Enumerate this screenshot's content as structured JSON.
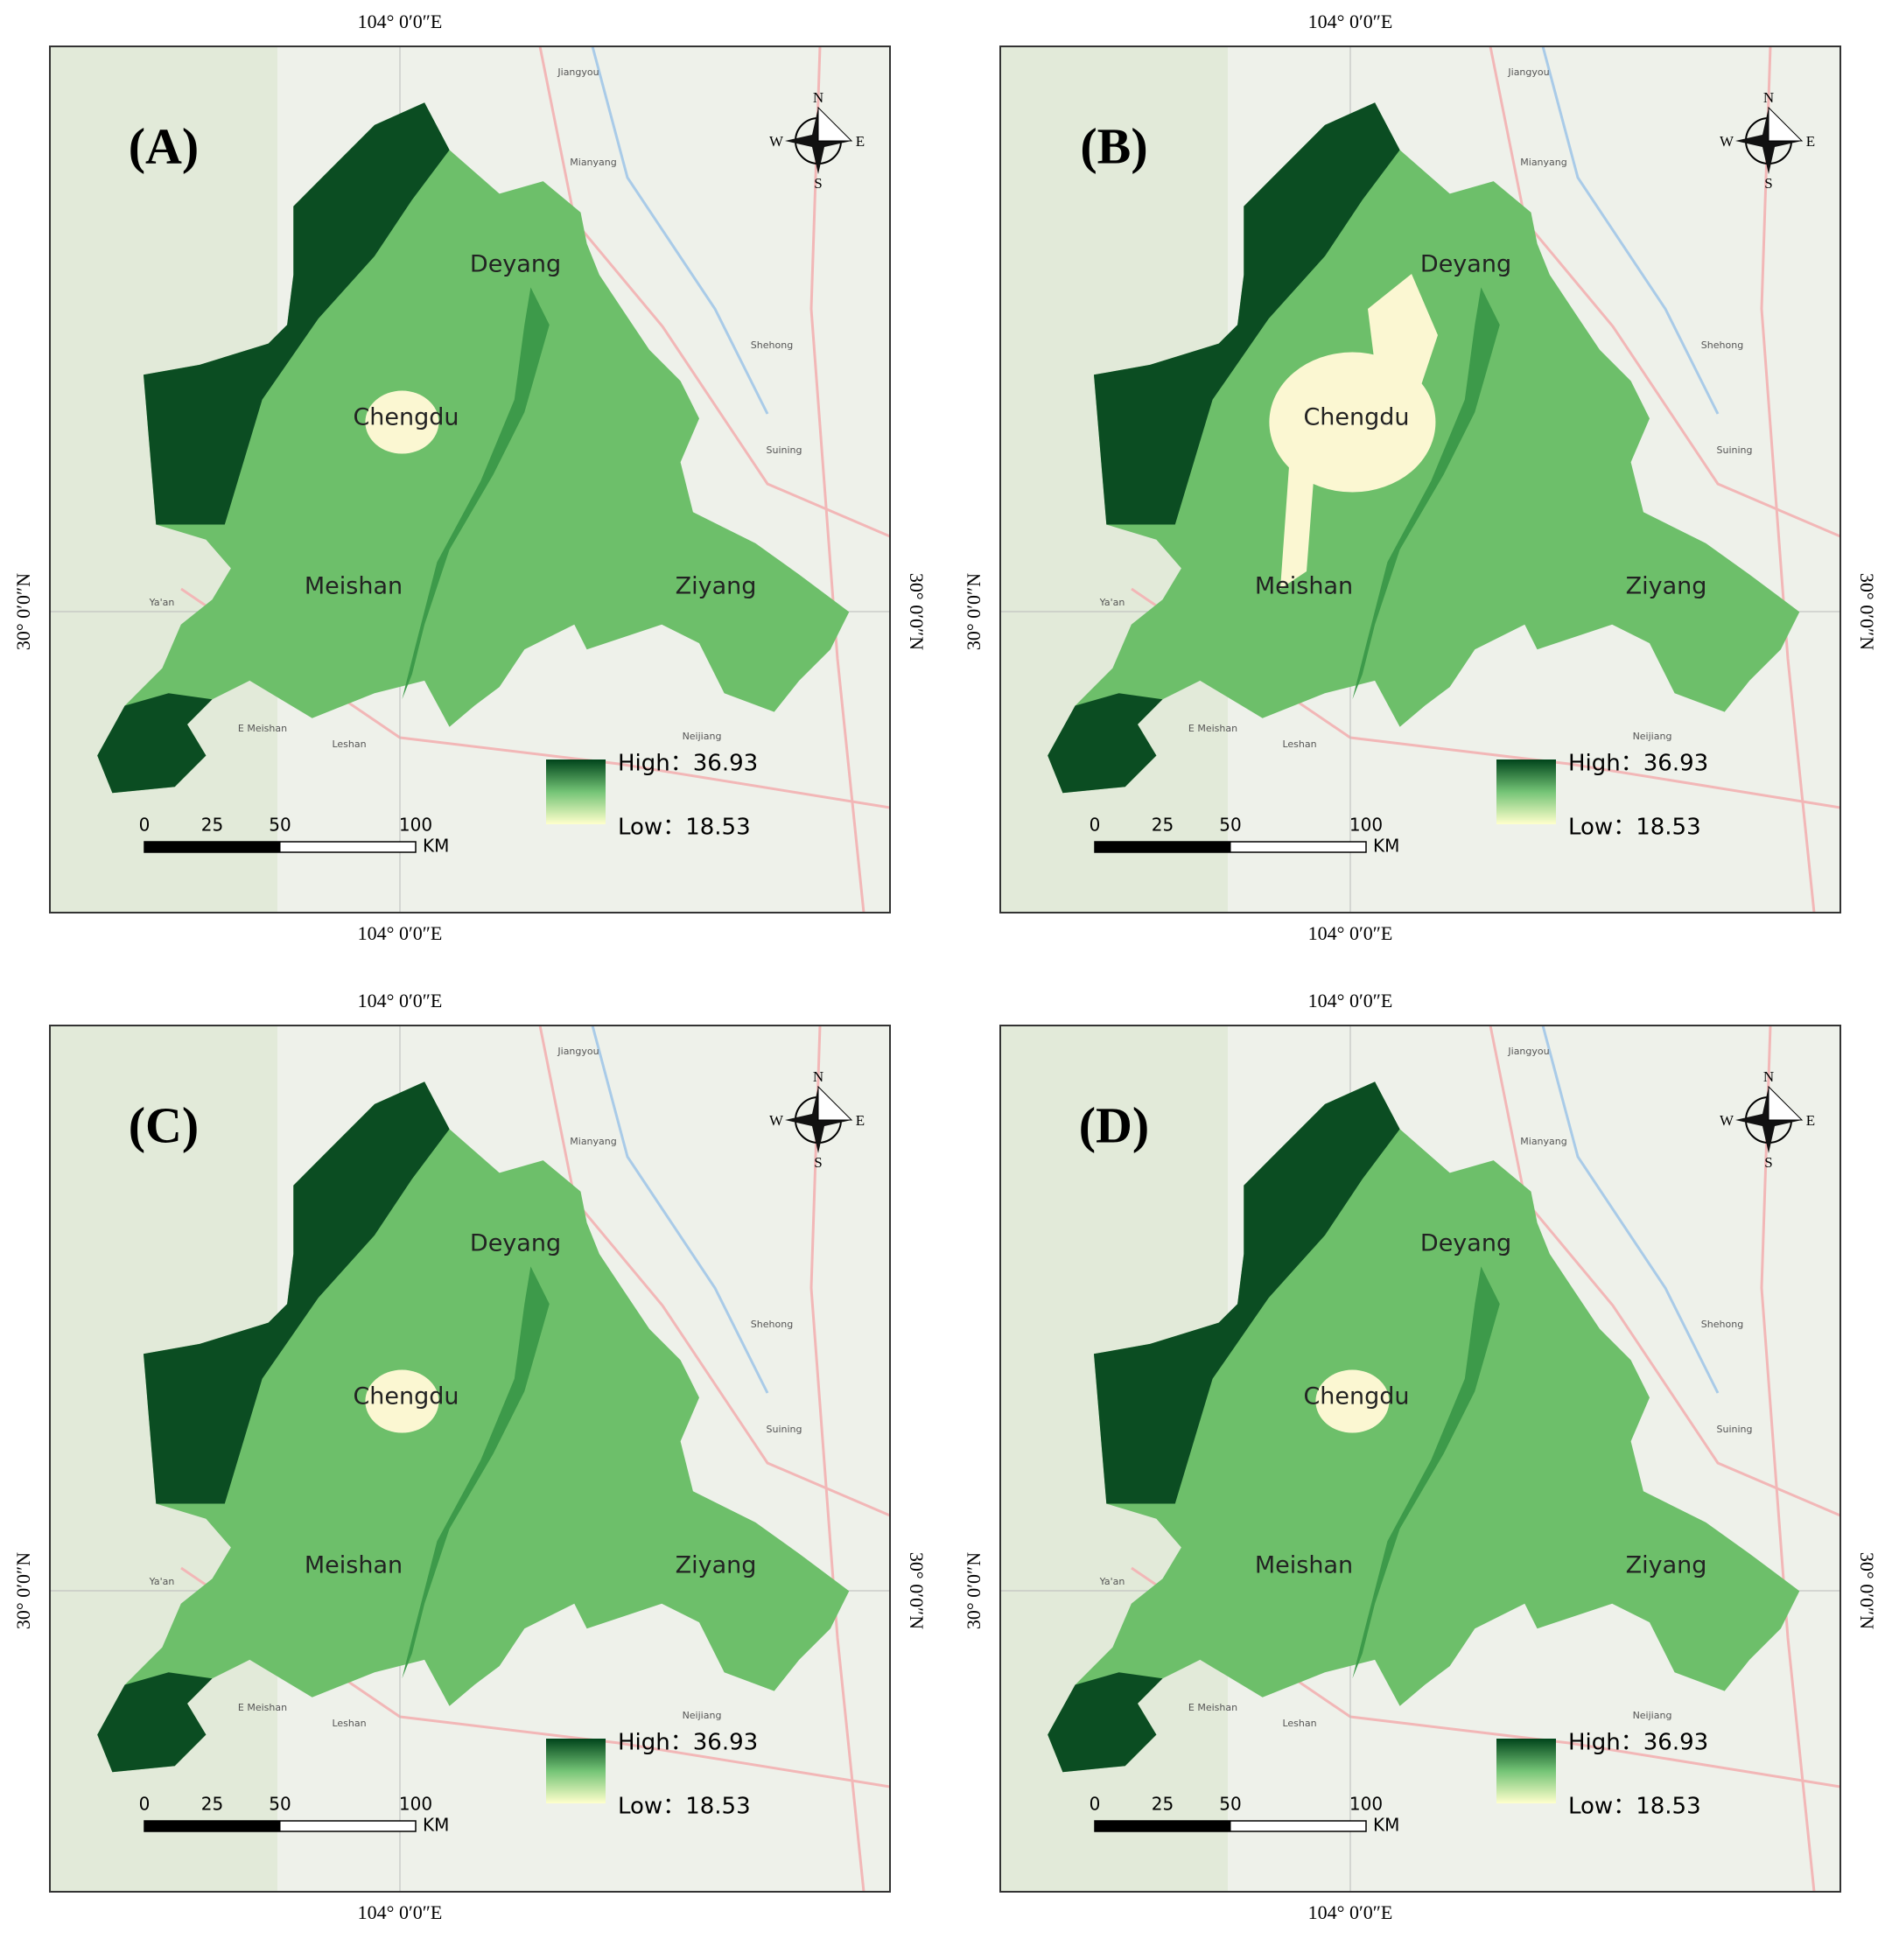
{
  "panels": [
    {
      "label": "(A)"
    },
    {
      "label": "(B)"
    },
    {
      "label": "(C)"
    },
    {
      "label": "(D)"
    }
  ],
  "longitude_label": "104° 0′0″E",
  "latitude_label": "30° 0′0″N",
  "compass": {
    "north": "N",
    "south": "S",
    "east": "E",
    "west": "W"
  },
  "cities": [
    {
      "name": "Deyang"
    },
    {
      "name": "Chengdu"
    },
    {
      "name": "Meishan"
    },
    {
      "name": "Ziyang"
    }
  ],
  "places": [
    "Jiangyou",
    "Mianyang",
    "Shehong",
    "Suining",
    "Ya'an",
    "E Meishan",
    "Leshan",
    "Neijiang"
  ],
  "legend": {
    "high": "High：36.93",
    "low": "Low：18.53"
  },
  "scale_bar": {
    "ticks": [
      0,
      25,
      50,
      100
    ],
    "unit": "KM"
  }
}
